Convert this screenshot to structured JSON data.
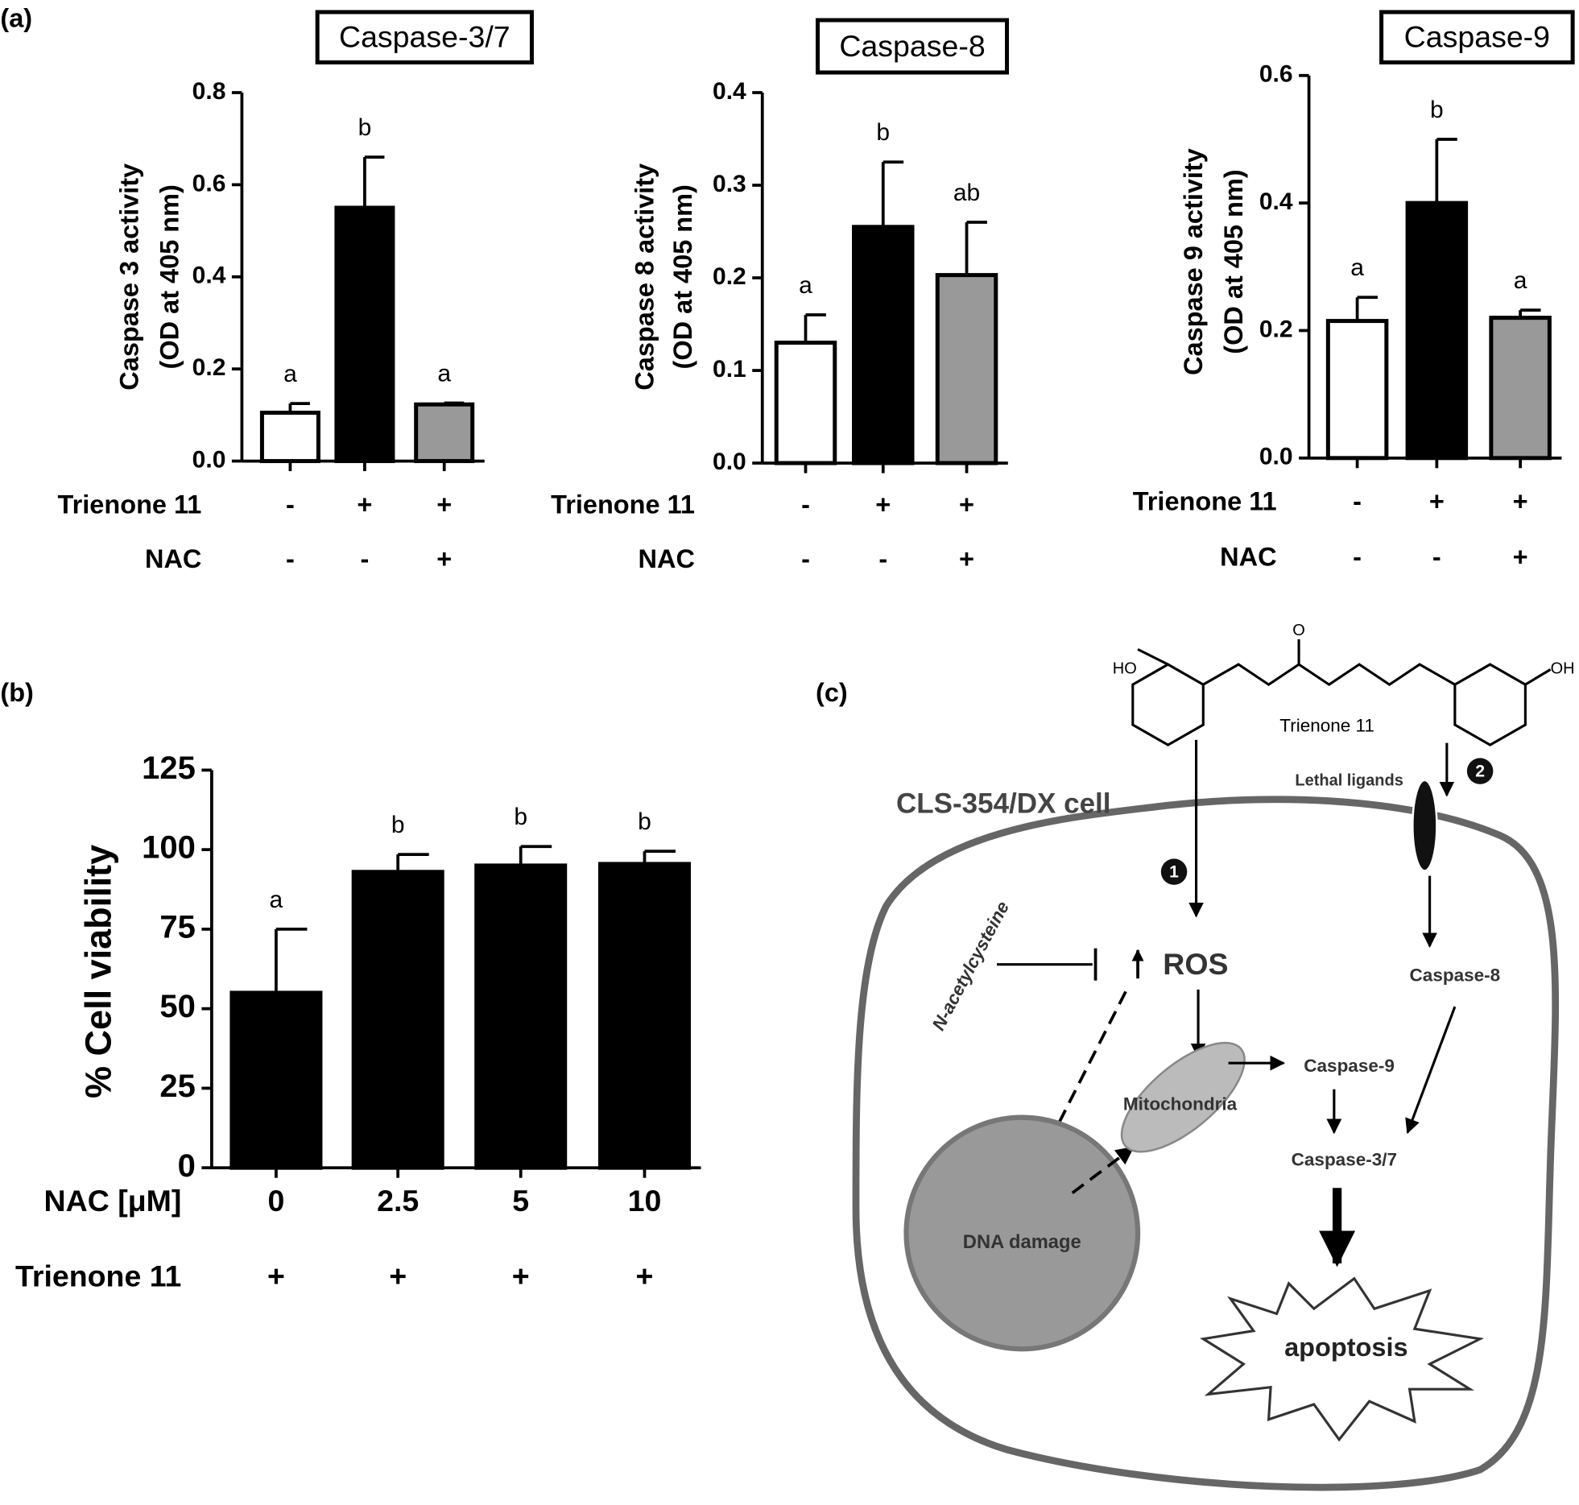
{
  "chart_data": [
    {
      "type": "bar",
      "panel": "(a)",
      "title": "Caspase-3/7",
      "ylabel": [
        "Caspase 3 activity",
        "(OD at 405 nm)"
      ],
      "ylim": [
        0,
        0.8
      ],
      "yticks": [
        {
          "value": 0,
          "label": "0.0"
        },
        0.2,
        0.4,
        0.6,
        0.8
      ],
      "values": [
        0.105,
        0.55,
        0.123
      ],
      "errors": [
        0.02,
        0.11,
        0.003
      ],
      "letters": [
        "a",
        "b",
        "a"
      ],
      "colors": [
        "#ffffff",
        "#000000",
        "#999999"
      ],
      "rows": [
        {
          "label": "Trienone 11",
          "values": [
            "-",
            "+",
            "+"
          ]
        },
        {
          "label": "NAC",
          "values": [
            "-",
            "-",
            "+"
          ]
        }
      ]
    },
    {
      "type": "bar",
      "title": "Caspase-8",
      "ylabel": [
        "Caspase 8 activity",
        "(OD at 405 nm)"
      ],
      "ylim": [
        0,
        0.4
      ],
      "yticks": [
        {
          "value": 0,
          "label": "0.0"
        },
        0.1,
        0.2,
        0.3,
        0.4
      ],
      "values": [
        0.13,
        0.255,
        0.203
      ],
      "errors": [
        0.03,
        0.07,
        0.057
      ],
      "letters": [
        "a",
        "b",
        "ab"
      ],
      "colors": [
        "#ffffff",
        "#000000",
        "#999999"
      ],
      "rows": [
        {
          "label": "Trienone 11",
          "values": [
            "-",
            "+",
            "+"
          ]
        },
        {
          "label": "NAC",
          "values": [
            "-",
            "-",
            "+"
          ]
        }
      ]
    },
    {
      "type": "bar",
      "title": "Caspase-9",
      "ylabel": [
        "Caspase 9 activity",
        "(OD at 405 nm)"
      ],
      "ylim": [
        0,
        0.6
      ],
      "yticks": [
        {
          "value": 0,
          "label": "0.0"
        },
        0.2,
        0.4,
        0.6
      ],
      "values": [
        0.215,
        0.4,
        0.22
      ],
      "errors": [
        0.037,
        0.1,
        0.012
      ],
      "letters": [
        "a",
        "b",
        "a"
      ],
      "colors": [
        "#ffffff",
        "#000000",
        "#999999"
      ],
      "rows": [
        {
          "label": "Trienone 11",
          "values": [
            "-",
            "+",
            "+"
          ]
        },
        {
          "label": "NAC",
          "values": [
            "-",
            "-",
            "+"
          ]
        }
      ]
    },
    {
      "type": "bar",
      "panel": "(b)",
      "ylabel": [
        "% Cell viability"
      ],
      "ylim": [
        0,
        125
      ],
      "yticks": [
        0,
        25,
        50,
        75,
        100,
        125
      ],
      "values": [
        55,
        93,
        95,
        95.5
      ],
      "errors": [
        20,
        5.5,
        6,
        4
      ],
      "letters": [
        "a",
        "b",
        "b",
        "b"
      ],
      "colors": [
        "#000000",
        "#000000",
        "#000000",
        "#000000"
      ],
      "rows": [
        {
          "label": "NAC [μM]",
          "values": [
            "0",
            "2.5",
            "5",
            "10"
          ]
        },
        {
          "label": "Trienone 11",
          "values": [
            "+",
            "+",
            "+",
            "+"
          ]
        }
      ]
    }
  ],
  "diagram": {
    "panel": "(c)",
    "ho": "HO",
    "oh": "OH",
    "o": "O",
    "compound": "Trienone 11",
    "ligands": "Lethal ligands",
    "step1": "1",
    "step2": "2",
    "cell": "CLS-354/DX cell",
    "nac": "N-acetylcysteine",
    "ros": "ROS",
    "casp8": "Caspase-8",
    "mito": "Mitochondria",
    "casp9": "Caspase-9",
    "casp37": "Caspase-3/7",
    "dna": "DNA damage",
    "apoptosis": "apoptosis"
  }
}
